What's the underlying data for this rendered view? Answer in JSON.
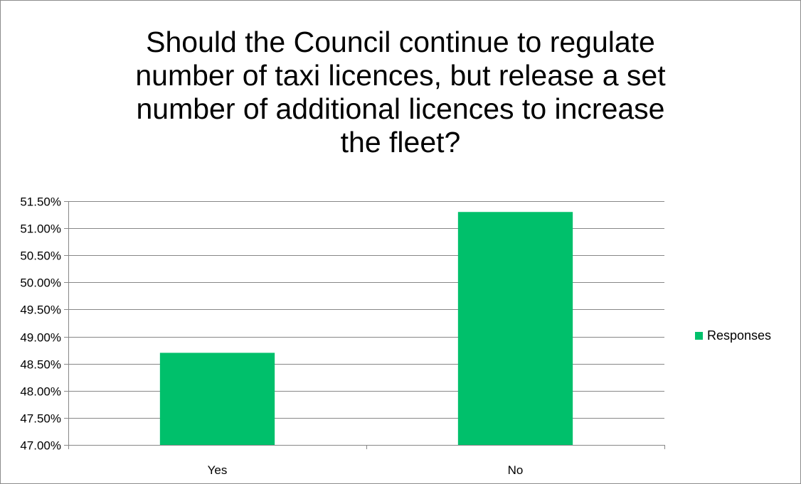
{
  "chart_data": {
    "type": "bar",
    "title": "Should the Council continue to regulate\nnumber of taxi licences, but release a set\nnumber of additional licences to increase\nthe fleet?",
    "categories": [
      "Yes",
      "No"
    ],
    "series": [
      {
        "name": "Responses",
        "values": [
          48.7,
          51.3
        ],
        "color": "#00c06b"
      }
    ],
    "ylim": [
      47.0,
      51.5
    ],
    "yticks": [
      "47.00%",
      "47.50%",
      "48.00%",
      "48.50%",
      "49.00%",
      "49.50%",
      "50.00%",
      "50.50%",
      "51.00%",
      "51.50%"
    ],
    "ytick_values": [
      47.0,
      47.5,
      48.0,
      48.5,
      49.0,
      49.5,
      50.0,
      50.5,
      51.0,
      51.5
    ],
    "xlabel": "",
    "ylabel": "",
    "grid": true,
    "legend_position": "right"
  }
}
